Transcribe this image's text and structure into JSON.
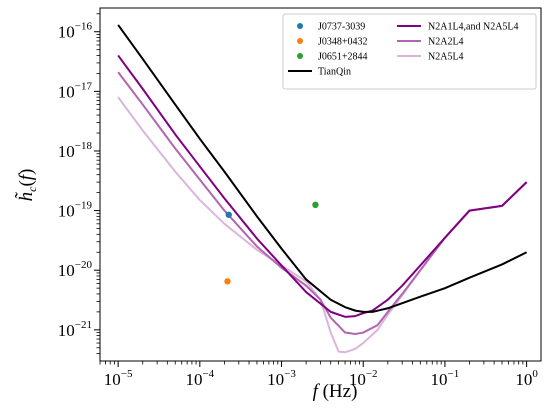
{
  "chart_data": {
    "type": "line",
    "xlabel": "f (Hz)",
    "ylabel": "h̃c(f)",
    "x_scale": "log",
    "y_scale": "log",
    "xlim": [
      6e-06,
      1.5
    ],
    "ylim": [
      3e-22,
      2.5e-16
    ],
    "x_ticks": [
      1e-05,
      0.0001,
      0.001,
      0.01,
      0.1,
      1.0
    ],
    "x_tick_labels": [
      {
        "base": "10",
        "exp": "−5"
      },
      {
        "base": "10",
        "exp": "−4"
      },
      {
        "base": "10",
        "exp": "−3"
      },
      {
        "base": "10",
        "exp": "−2"
      },
      {
        "base": "10",
        "exp": "−1"
      },
      {
        "base": "10",
        "exp": "0"
      }
    ],
    "y_ticks": [
      1e-21,
      1e-20,
      1e-19,
      1e-18,
      1e-17,
      1e-16
    ],
    "y_tick_labels": [
      {
        "base": "10",
        "exp": "−21"
      },
      {
        "base": "10",
        "exp": "−20"
      },
      {
        "base": "10",
        "exp": "−19"
      },
      {
        "base": "10",
        "exp": "−18"
      },
      {
        "base": "10",
        "exp": "−17"
      },
      {
        "base": "10",
        "exp": "−16"
      }
    ],
    "grid": false,
    "legend_position": "top-right",
    "points": [
      {
        "name": "J0737-3039",
        "color": "#1f77b4",
        "x": 0.000226,
        "y": 8.5e-20
      },
      {
        "name": "J0348+0432",
        "color": "#ff7f0e",
        "x": 0.000218,
        "y": 6.5e-21
      },
      {
        "name": "J0651+2844",
        "color": "#2ca02c",
        "x": 0.0026,
        "y": 1.25e-19
      }
    ],
    "series": [
      {
        "name": "TianQin",
        "color": "#000000",
        "x": [
          1e-05,
          2e-05,
          5e-05,
          0.0001,
          0.0002,
          0.0005,
          0.001,
          0.002,
          0.004,
          0.006,
          0.008,
          0.01,
          0.013,
          0.02,
          0.03,
          0.05,
          0.1,
          0.2,
          0.5,
          1.0
        ],
        "y": [
          1.3e-16,
          3.5e-17,
          6e-18,
          1.6e-18,
          4.5e-19,
          8e-20,
          2.3e-20,
          7e-21,
          3.2e-21,
          2.4e-21,
          2.1e-21,
          2e-21,
          2e-21,
          2.3e-21,
          2.8e-21,
          3.6e-21,
          5e-21,
          7.5e-21,
          1.25e-20,
          2e-20
        ]
      },
      {
        "name": "N2A1L4,and N2A5L4",
        "color": "#800080",
        "x": [
          1e-05,
          2e-05,
          5e-05,
          0.0001,
          0.0002,
          0.0005,
          0.001,
          0.002,
          0.004,
          0.006,
          0.008,
          0.01,
          0.013,
          0.02,
          0.03,
          0.05,
          0.1,
          0.2,
          0.5,
          1.0
        ],
        "y": [
          4e-17,
          1.1e-17,
          1.9e-18,
          5.5e-19,
          1.6e-19,
          3.4e-20,
          1.2e-20,
          4.3e-21,
          2e-21,
          1.65e-21,
          1.7e-21,
          1.9e-21,
          2.1e-21,
          3.2e-21,
          5.5e-21,
          1.2e-20,
          3.5e-20,
          1e-19,
          1.2e-19,
          3e-19
        ]
      },
      {
        "name": "N2A2L4",
        "color": "#b266b2",
        "x": [
          1e-05,
          2e-05,
          5e-05,
          0.0001,
          0.0002,
          0.0005,
          0.001,
          0.002,
          0.003,
          0.004,
          0.006,
          0.008,
          0.01,
          0.015,
          0.02,
          0.03,
          0.05,
          0.1,
          0.2,
          0.5,
          1.0
        ],
        "y": [
          2.1e-17,
          6e-18,
          1.1e-18,
          3.3e-19,
          1e-19,
          2.5e-20,
          1.1e-20,
          5.5e-21,
          3.2e-21,
          1.6e-21,
          9e-22,
          8.5e-22,
          9e-22,
          1.2e-21,
          2e-21,
          4e-21,
          1e-20,
          3.5e-20,
          1e-19,
          1.2e-19,
          3e-19
        ]
      },
      {
        "name": "N2A5L4",
        "color": "#dbb5db",
        "x": [
          1e-05,
          2e-05,
          5e-05,
          0.0001,
          0.0002,
          0.0005,
          0.001,
          0.002,
          0.003,
          0.004,
          0.005,
          0.006,
          0.008,
          0.01,
          0.015,
          0.02,
          0.03,
          0.05,
          0.1,
          0.2,
          0.5,
          1.0
        ],
        "y": [
          8e-18,
          2.2e-18,
          4.5e-19,
          1.5e-19,
          6e-20,
          2.2e-20,
          1.2e-20,
          6.5e-21,
          3.2e-21,
          9e-22,
          4.3e-22,
          4.2e-22,
          4.8e-22,
          6e-22,
          1e-21,
          1.8e-21,
          3.8e-21,
          1e-20,
          3.5e-20,
          1e-19,
          1.2e-19,
          3e-19
        ]
      }
    ]
  }
}
